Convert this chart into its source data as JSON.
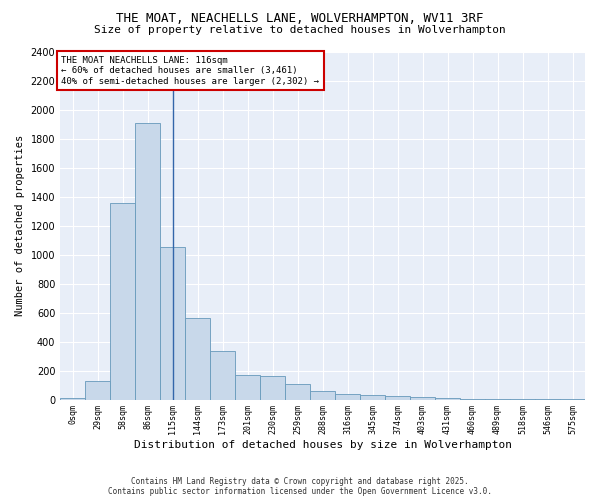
{
  "title": "THE MOAT, NEACHELLS LANE, WOLVERHAMPTON, WV11 3RF",
  "subtitle": "Size of property relative to detached houses in Wolverhampton",
  "xlabel": "Distribution of detached houses by size in Wolverhampton",
  "ylabel": "Number of detached properties",
  "bar_color": "#c8d8ea",
  "bar_edge_color": "#6699bb",
  "plot_bg_color": "#e8eef8",
  "fig_bg_color": "#ffffff",
  "tick_labels": [
    "0sqm",
    "29sqm",
    "58sqm",
    "86sqm",
    "115sqm",
    "144sqm",
    "173sqm",
    "201sqm",
    "230sqm",
    "259sqm",
    "288sqm",
    "316sqm",
    "345sqm",
    "374sqm",
    "403sqm",
    "431sqm",
    "460sqm",
    "489sqm",
    "518sqm",
    "546sqm",
    "575sqm"
  ],
  "bar_values": [
    10,
    125,
    1355,
    1910,
    1050,
    560,
    335,
    170,
    165,
    105,
    60,
    40,
    30,
    25,
    20,
    10,
    5,
    5,
    3,
    2,
    5
  ],
  "ylim": [
    0,
    2400
  ],
  "yticks": [
    0,
    200,
    400,
    600,
    800,
    1000,
    1200,
    1400,
    1600,
    1800,
    2000,
    2200,
    2400
  ],
  "vline_x": 4,
  "vline_color": "#3366aa",
  "annotation_title": "THE MOAT NEACHELLS LANE: 116sqm",
  "annotation_line1": "← 60% of detached houses are smaller (3,461)",
  "annotation_line2": "40% of semi-detached houses are larger (2,302) →",
  "annotation_bg": "#ffffff",
  "annotation_edge": "#cc0000",
  "footer_line1": "Contains HM Land Registry data © Crown copyright and database right 2025.",
  "footer_line2": "Contains public sector information licensed under the Open Government Licence v3.0."
}
